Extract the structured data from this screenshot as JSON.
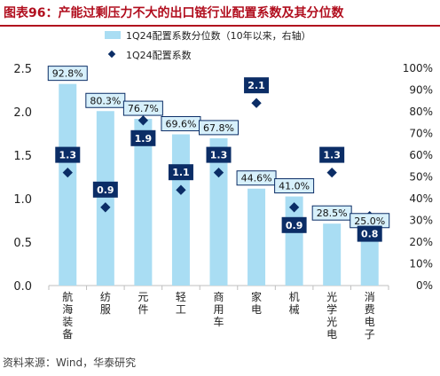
{
  "title": "图表96：产能过剩压力不大的出口链行业配置系数及其分位数",
  "source": "资料来源：Wind，华泰研究",
  "colors": {
    "bar": "#a9ddf3",
    "marker": "#0b2d66",
    "label_fill": "#d7f0fb",
    "label_stroke": "#0b2d66",
    "title": "#b10e1e"
  },
  "chart_data": {
    "type": "bar",
    "categories": [
      "航海装备",
      "纺服",
      "元件",
      "轻工",
      "商用车",
      "家电",
      "机械",
      "光学光电",
      "消费电子"
    ],
    "series": [
      {
        "name": "1Q24配置系数分位数（10年以来，右轴）",
        "type": "bar",
        "axis": "right",
        "values": [
          92.8,
          80.3,
          76.7,
          69.6,
          67.8,
          44.6,
          41.0,
          28.5,
          25.0
        ],
        "labels": [
          "92.8%",
          "80.3%",
          "76.7%",
          "69.6%",
          "67.8%",
          "44.6%",
          "41.0%",
          "28.5%",
          "25.0%"
        ]
      },
      {
        "name": "1Q24配置系数",
        "type": "scatter",
        "axis": "left",
        "values": [
          1.3,
          0.9,
          1.9,
          1.1,
          1.3,
          2.1,
          0.9,
          1.3,
          0.8
        ],
        "labels": [
          "1.3",
          "0.9",
          "1.9",
          "1.1",
          "1.3",
          "2.1",
          "0.9",
          "1.3",
          "0.8"
        ]
      }
    ],
    "y_left": {
      "min": 0,
      "max": 2.5,
      "ticks": [
        "0.0",
        "0.5",
        "1.0",
        "1.5",
        "2.0",
        "2.5"
      ]
    },
    "y_right": {
      "min": 0,
      "max": 100,
      "ticks": [
        "0%",
        "10%",
        "20%",
        "30%",
        "40%",
        "50%",
        "60%",
        "70%",
        "80%",
        "90%",
        "100%"
      ]
    },
    "legend": "top",
    "grid": false
  }
}
